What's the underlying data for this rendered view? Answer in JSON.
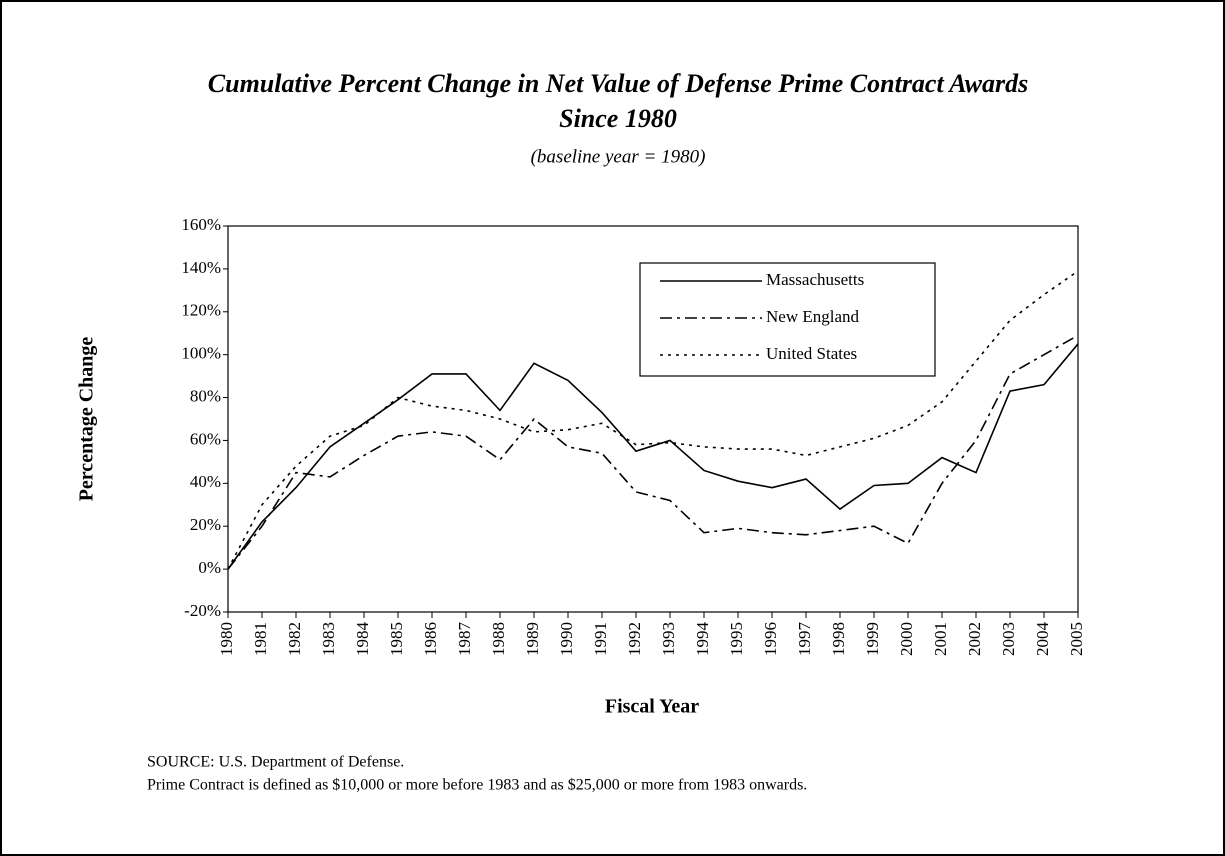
{
  "chart_data": {
    "type": "line",
    "title": [
      "Cumulative Percent Change in Net Value of Defense Prime Contract Awards",
      "Since 1980"
    ],
    "subtitle": "(baseline  year = 1980)",
    "x_label": "Fiscal Year",
    "y_label": "Percentage Change",
    "categories": [
      "1980",
      "1981",
      "1982",
      "1983",
      "1984",
      "1985",
      "1986",
      "1987",
      "1988",
      "1989",
      "1990",
      "1991",
      "1992",
      "1993",
      "1994",
      "1995",
      "1996",
      "1997",
      "1998",
      "1999",
      "2000",
      "2001",
      "2002",
      "2003",
      "2004",
      "2005"
    ],
    "series": [
      {
        "name": "Massachusetts",
        "color": "#000000",
        "dash": "solid",
        "values": [
          0,
          22,
          38,
          57,
          68,
          79,
          91,
          91,
          74,
          96,
          88,
          73,
          55,
          60,
          46,
          41,
          38,
          42,
          28,
          39,
          40,
          52,
          45,
          83,
          86,
          105
        ]
      },
      {
        "name": "New England",
        "color": "#000000",
        "dash": "dashdot",
        "values": [
          0,
          20,
          45,
          43,
          53,
          62,
          64,
          62,
          51,
          70,
          57,
          54,
          36,
          32,
          17,
          19,
          17,
          16,
          18,
          20,
          12,
          40,
          60,
          91,
          100,
          109
        ]
      },
      {
        "name": "United States",
        "color": "#000000",
        "dash": "dot",
        "values": [
          0,
          30,
          48,
          62,
          67,
          80,
          76,
          74,
          70,
          64,
          65,
          68,
          58,
          59,
          57,
          56,
          56,
          53,
          57,
          61,
          67,
          78,
          97,
          116,
          128,
          139
        ]
      }
    ],
    "ylim": [
      -20,
      160
    ],
    "yticks": [
      {
        "value": -20,
        "label": "-20%"
      },
      {
        "value": 0,
        "label": "0%"
      },
      {
        "value": 20,
        "label": "20%"
      },
      {
        "value": 40,
        "label": "40%"
      },
      {
        "value": 60,
        "label": "60%"
      },
      {
        "value": 80,
        "label": "80%"
      },
      {
        "value": 100,
        "label": "100%"
      },
      {
        "value": 120,
        "label": "120%"
      },
      {
        "value": 140,
        "label": "140%"
      },
      {
        "value": 160,
        "label": "160%"
      }
    ],
    "grid": false,
    "legend": "upper-right",
    "notes": [
      "SOURCE: U.S. Department of Defense.",
      "Prime Contract is defined as $10,000 or more before 1983 and as $25,000 or more from 1983 onwards."
    ]
  }
}
